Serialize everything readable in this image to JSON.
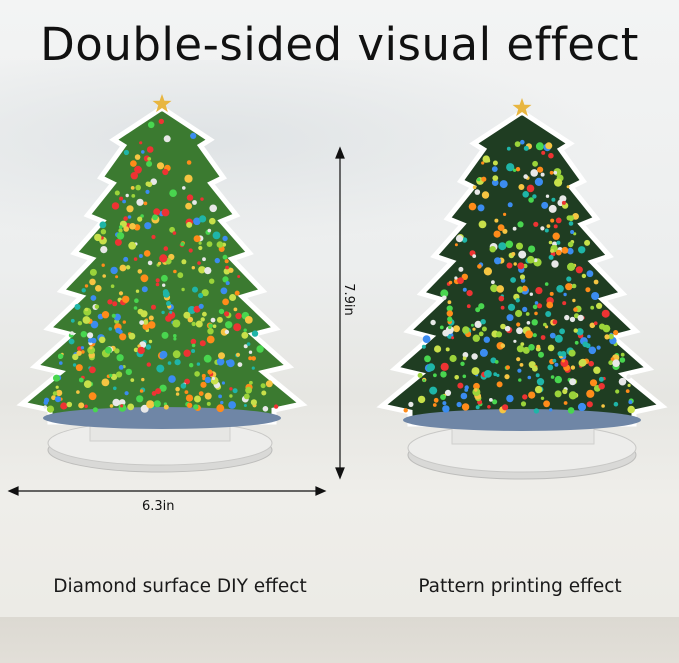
{
  "title": "Double-sided visual effect",
  "dimensions": {
    "height": "7.9in",
    "width": "6.3in"
  },
  "captions": {
    "left": "Diamond surface DIY effect",
    "right": "Pattern printing effect"
  },
  "colors": {
    "tree_green": "#2f6b2a",
    "star": "#e8b640",
    "text": "#111111"
  }
}
